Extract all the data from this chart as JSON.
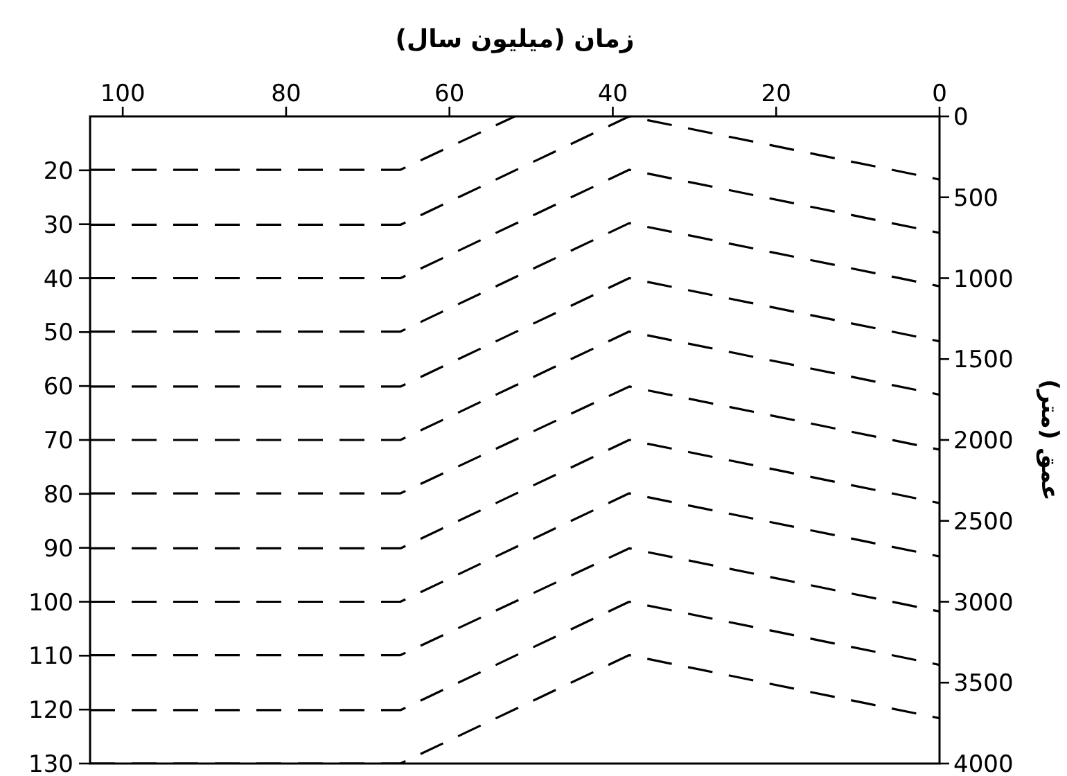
{
  "chart_data": {
    "type": "line",
    "xlabel": "زمان (میلیون سال)",
    "ylabel": "عمق (متر)",
    "xlim": [
      104,
      0
    ],
    "xticks": [
      100,
      80,
      60,
      40,
      20,
      0
    ],
    "ylim": [
      4000,
      0
    ],
    "yticks": [
      0,
      500,
      1000,
      1500,
      2000,
      2500,
      3000,
      3500,
      4000
    ],
    "y2lim": [
      130,
      10
    ],
    "y2ticks": [
      20,
      30,
      40,
      50,
      60,
      70,
      80,
      90,
      100,
      110,
      120,
      130
    ],
    "grid": false,
    "marker": "none",
    "line_style": "dashed",
    "series": [
      {
        "color": "#000000",
        "x": [
          104,
          66,
          52
        ],
        "values": [
          330,
          330,
          0
        ]
      },
      {
        "color": "#000000",
        "x": [
          104,
          66,
          38,
          0
        ],
        "values": [
          670,
          670,
          0,
          390
        ]
      },
      {
        "color": "#000000",
        "x": [
          104,
          66,
          38,
          0
        ],
        "values": [
          1000,
          1000,
          330,
          720
        ]
      },
      {
        "color": "#000000",
        "x": [
          104,
          66,
          38,
          0
        ],
        "values": [
          1330,
          1330,
          660,
          1050
        ]
      },
      {
        "color": "#000000",
        "x": [
          104,
          66,
          38,
          0
        ],
        "values": [
          1670,
          1670,
          1000,
          1390
        ]
      },
      {
        "color": "#000000",
        "x": [
          104,
          66,
          38,
          0
        ],
        "values": [
          2000,
          2000,
          1330,
          1720
        ]
      },
      {
        "color": "#000000",
        "x": [
          104,
          66,
          38,
          0
        ],
        "values": [
          2330,
          2330,
          1670,
          2060
        ]
      },
      {
        "color": "#000000",
        "x": [
          104,
          66,
          38,
          0
        ],
        "values": [
          2670,
          2670,
          2000,
          2390
        ]
      },
      {
        "color": "#000000",
        "x": [
          104,
          66,
          38,
          0
        ],
        "values": [
          3000,
          3000,
          2330,
          2720
        ]
      },
      {
        "color": "#000000",
        "x": [
          104,
          66,
          38,
          0
        ],
        "values": [
          3330,
          3330,
          2670,
          3060
        ]
      },
      {
        "color": "#000000",
        "x": [
          104,
          66,
          38,
          0
        ],
        "values": [
          3670,
          3670,
          3000,
          3390
        ]
      },
      {
        "color": "#000000",
        "x": [
          104,
          66,
          38,
          0
        ],
        "values": [
          4000,
          4000,
          3330,
          3720
        ]
      }
    ]
  }
}
